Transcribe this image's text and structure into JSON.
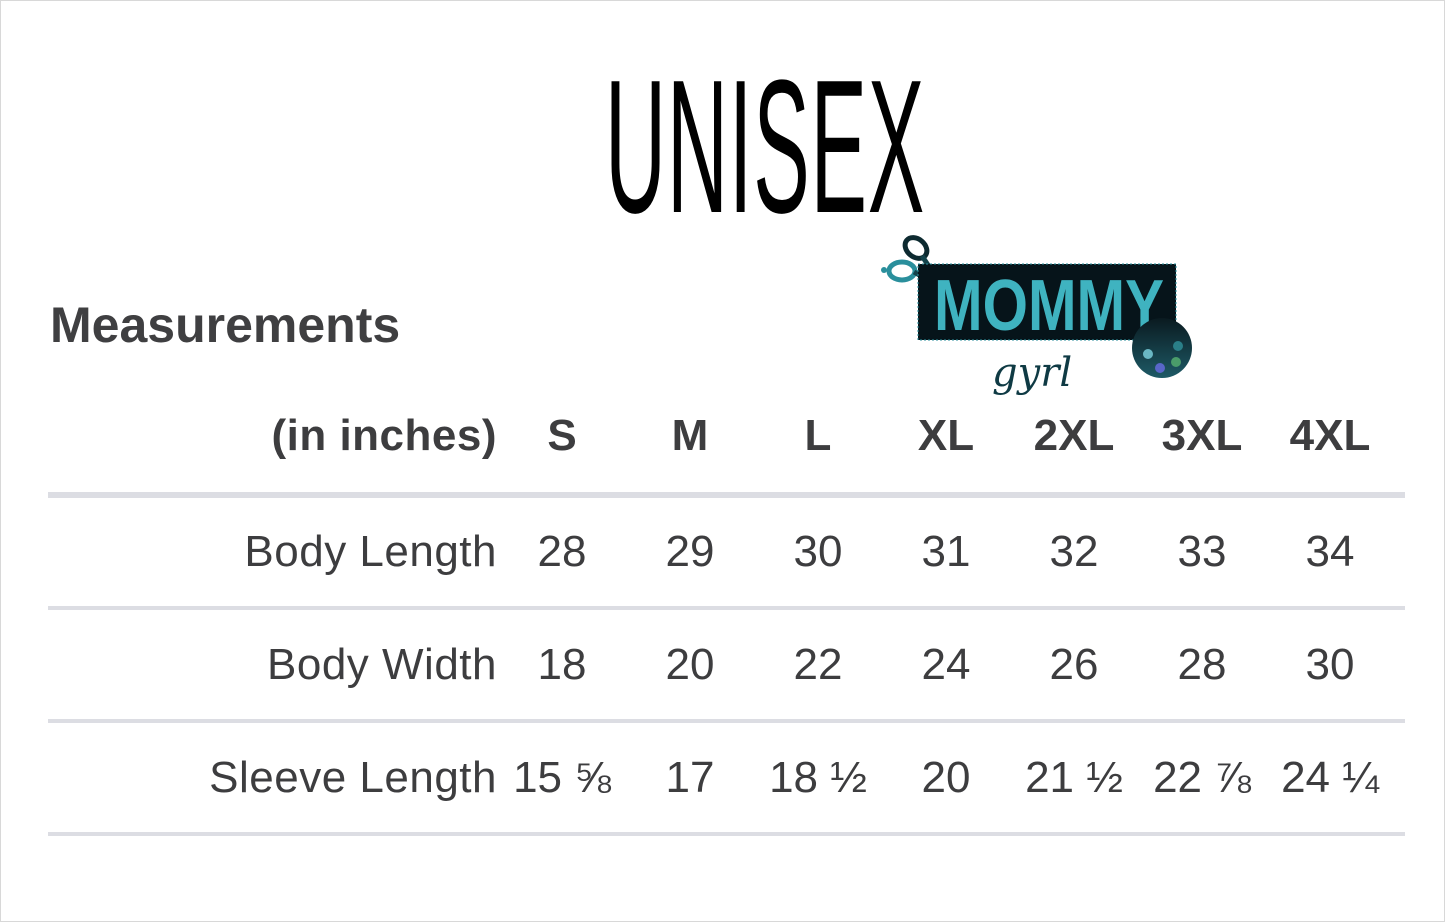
{
  "title": "UNISEX",
  "logo": {
    "text": "MOMMY",
    "script_text": "gyrl",
    "colors": {
      "teal": "#3fb3c0",
      "dark": "#06141a"
    }
  },
  "section_heading": "Measurements",
  "table": {
    "unit_label": "(in inches)",
    "sizes": [
      "S",
      "M",
      "L",
      "XL",
      "2XL",
      "3XL",
      "4XL"
    ],
    "rows": [
      {
        "label": "Body Length",
        "values": [
          "28",
          "29",
          "30",
          "31",
          "32",
          "33",
          "34"
        ]
      },
      {
        "label": "Body Width",
        "values": [
          "18",
          "20",
          "22",
          "24",
          "26",
          "28",
          "30"
        ]
      },
      {
        "label": "Sleeve Length",
        "values": [
          "15 ⅝",
          "17",
          "18 ½",
          "20",
          "21 ½",
          "22 ⅞",
          "24 ¼"
        ]
      }
    ]
  },
  "colors": {
    "text": "#3d3d3f",
    "divider": "#dcdde3"
  }
}
